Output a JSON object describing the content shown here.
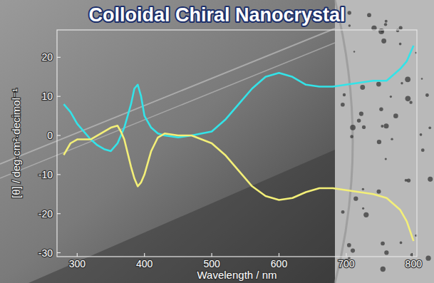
{
  "chart_data": {
    "type": "line",
    "title": "Colloidal Chiral Nanocrystal",
    "x_label": "Wavelength / nm",
    "y_label": "[θ] / deg·cm²·decimol⁻¹",
    "x": [
      280,
      290,
      300,
      310,
      320,
      330,
      340,
      350,
      360,
      365,
      370,
      380,
      385,
      390,
      395,
      400,
      410,
      420,
      430,
      450,
      470,
      500,
      520,
      540,
      560,
      580,
      600,
      620,
      640,
      660,
      680,
      700,
      720,
      740,
      760,
      780,
      790,
      800
    ],
    "series": [
      {
        "color": "#33e3e8",
        "values": [
          8,
          6,
          3,
          1,
          -1,
          -2.5,
          -3.5,
          -4,
          -2,
          0,
          2,
          8,
          12,
          13,
          10,
          5,
          2,
          0.5,
          0,
          -0.5,
          0,
          1,
          4,
          8,
          12,
          15,
          16,
          15,
          13,
          12.5,
          12.5,
          13,
          13.5,
          14,
          14,
          17,
          19,
          23
        ]
      },
      {
        "color": "#f3ef78",
        "values": [
          -5,
          -2,
          -1,
          -1,
          -1,
          0,
          1,
          2,
          2.5,
          1,
          -1,
          -8,
          -11,
          -13,
          -12,
          -10,
          -4,
          -0.5,
          0.5,
          0,
          0,
          -2,
          -5,
          -9,
          -13,
          -15.5,
          -16.5,
          -16,
          -14.5,
          -13.5,
          -13.5,
          -14,
          -14.5,
          -15,
          -16,
          -19,
          -22,
          -27
        ]
      }
    ],
    "xlim": [
      270,
      805
    ],
    "ylim": [
      -31,
      27
    ],
    "xticks": [
      300,
      400,
      500,
      600,
      700,
      800
    ],
    "yticks": [
      -30,
      -20,
      -10,
      0,
      10,
      20
    ],
    "grid": false
  }
}
